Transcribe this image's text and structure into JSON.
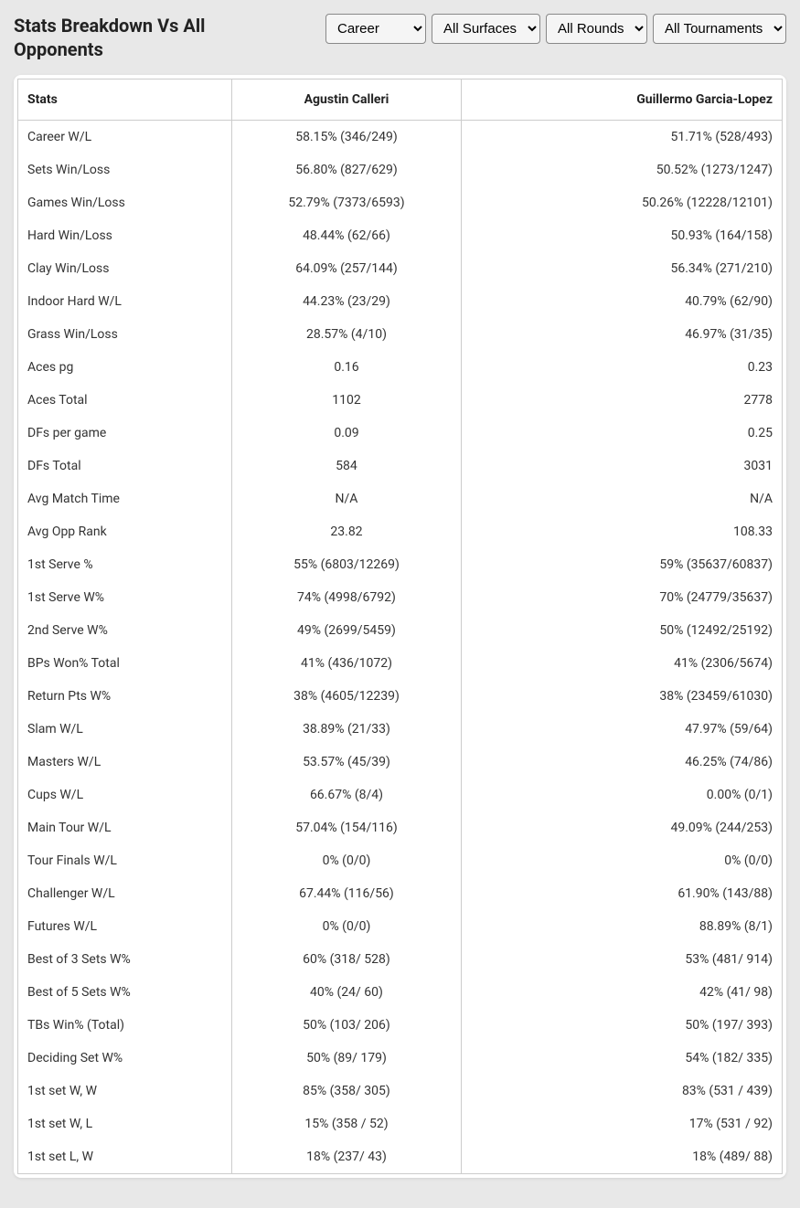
{
  "header": {
    "title": "Stats Breakdown Vs All Opponents"
  },
  "filters": {
    "period": {
      "selected": "Career",
      "options": [
        "Career"
      ]
    },
    "surface": {
      "selected": "All Surfaces",
      "options": [
        "All Surfaces"
      ]
    },
    "rounds": {
      "selected": "All Rounds",
      "options": [
        "All Rounds"
      ]
    },
    "tournaments": {
      "selected": "All Tournaments",
      "options": [
        "All Tournaments"
      ]
    }
  },
  "table": {
    "columns": {
      "stats": "Stats",
      "player1": "Agustin Calleri",
      "player2": "Guillermo Garcia-Lopez"
    },
    "rows": [
      {
        "stat": "Career W/L",
        "p1": "58.15% (346/249)",
        "p2": "51.71% (528/493)"
      },
      {
        "stat": "Sets Win/Loss",
        "p1": "56.80% (827/629)",
        "p2": "50.52% (1273/1247)"
      },
      {
        "stat": "Games Win/Loss",
        "p1": "52.79% (7373/6593)",
        "p2": "50.26% (12228/12101)"
      },
      {
        "stat": "Hard Win/Loss",
        "p1": "48.44% (62/66)",
        "p2": "50.93% (164/158)"
      },
      {
        "stat": "Clay Win/Loss",
        "p1": "64.09% (257/144)",
        "p2": "56.34% (271/210)"
      },
      {
        "stat": "Indoor Hard W/L",
        "p1": "44.23% (23/29)",
        "p2": "40.79% (62/90)"
      },
      {
        "stat": "Grass Win/Loss",
        "p1": "28.57% (4/10)",
        "p2": "46.97% (31/35)"
      },
      {
        "stat": "Aces pg",
        "p1": "0.16",
        "p2": "0.23"
      },
      {
        "stat": "Aces Total",
        "p1": "1102",
        "p2": "2778"
      },
      {
        "stat": "DFs per game",
        "p1": "0.09",
        "p2": "0.25"
      },
      {
        "stat": "DFs Total",
        "p1": "584",
        "p2": "3031"
      },
      {
        "stat": "Avg Match Time",
        "p1": "N/A",
        "p2": "N/A"
      },
      {
        "stat": "Avg Opp Rank",
        "p1": "23.82",
        "p2": "108.33"
      },
      {
        "stat": "1st Serve %",
        "p1": "55% (6803/12269)",
        "p2": "59% (35637/60837)"
      },
      {
        "stat": "1st Serve W%",
        "p1": "74% (4998/6792)",
        "p2": "70% (24779/35637)"
      },
      {
        "stat": "2nd Serve W%",
        "p1": "49% (2699/5459)",
        "p2": "50% (12492/25192)"
      },
      {
        "stat": "BPs Won% Total",
        "p1": "41% (436/1072)",
        "p2": "41% (2306/5674)"
      },
      {
        "stat": "Return Pts W%",
        "p1": "38% (4605/12239)",
        "p2": "38% (23459/61030)"
      },
      {
        "stat": "Slam W/L",
        "p1": "38.89% (21/33)",
        "p2": "47.97% (59/64)"
      },
      {
        "stat": "Masters W/L",
        "p1": "53.57% (45/39)",
        "p2": "46.25% (74/86)"
      },
      {
        "stat": "Cups W/L",
        "p1": "66.67% (8/4)",
        "p2": "0.00% (0/1)"
      },
      {
        "stat": "Main Tour W/L",
        "p1": "57.04% (154/116)",
        "p2": "49.09% (244/253)"
      },
      {
        "stat": "Tour Finals W/L",
        "p1": "0% (0/0)",
        "p2": "0% (0/0)"
      },
      {
        "stat": "Challenger W/L",
        "p1": "67.44% (116/56)",
        "p2": "61.90% (143/88)"
      },
      {
        "stat": "Futures W/L",
        "p1": "0% (0/0)",
        "p2": "88.89% (8/1)"
      },
      {
        "stat": "Best of 3 Sets W%",
        "p1": "60% (318/ 528)",
        "p2": "53% (481/ 914)"
      },
      {
        "stat": "Best of 5 Sets W%",
        "p1": "40% (24/ 60)",
        "p2": "42% (41/ 98)"
      },
      {
        "stat": "TBs Win% (Total)",
        "p1": "50% (103/ 206)",
        "p2": "50% (197/ 393)"
      },
      {
        "stat": "Deciding Set W%",
        "p1": "50% (89/ 179)",
        "p2": "54% (182/ 335)"
      },
      {
        "stat": "1st set W, W",
        "p1": "85% (358/ 305)",
        "p2": "83% (531 / 439)"
      },
      {
        "stat": "1st set W, L",
        "p1": "15% (358 / 52)",
        "p2": "17% (531 / 92)"
      },
      {
        "stat": "1st set L, W",
        "p1": "18% (237/ 43)",
        "p2": "18% (489/ 88)"
      }
    ]
  },
  "colors": {
    "background": "#e8e8e8",
    "table_bg": "#ffffff",
    "text": "#222222",
    "border": "#cccccc"
  }
}
